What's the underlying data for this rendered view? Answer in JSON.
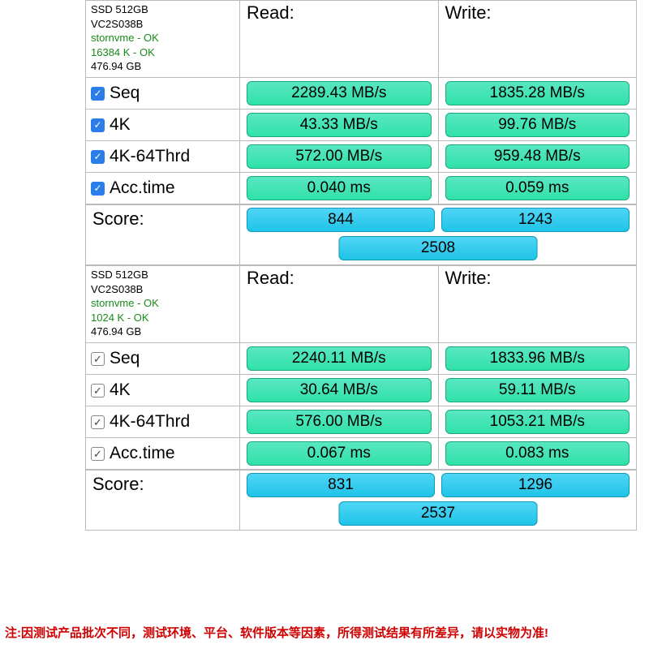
{
  "colors": {
    "green_bar_top": "#5ae6c2",
    "green_bar_bottom": "#2fe2a9",
    "green_bar_border": "#1ba87c",
    "cyan_bar_top": "#4fd5f5",
    "cyan_bar_bottom": "#1fc4e8",
    "cyan_bar_border": "#1499ba",
    "checkbox_blue": "#2b7de9",
    "ok_text": "#1a8a1a",
    "footer_red": "#d00000",
    "border": "#bbbbbb",
    "background": "#ffffff"
  },
  "columns": {
    "read": "Read:",
    "write": "Write:"
  },
  "checkbox_style": {
    "panel1": "blue",
    "panel2": "outline"
  },
  "panel1": {
    "device": {
      "name": "SSD 512GB",
      "model": "VC2S038B",
      "driver": "stornvme - OK",
      "block": "16384 K - OK",
      "capacity": "476.94 GB"
    },
    "rows": [
      {
        "key": "seq",
        "label": "Seq",
        "read": "2289.43 MB/s",
        "write": "1835.28 MB/s"
      },
      {
        "key": "4k",
        "label": "4K",
        "read": "43.33 MB/s",
        "write": "99.76 MB/s"
      },
      {
        "key": "4k64",
        "label": "4K-64Thrd",
        "read": "572.00 MB/s",
        "write": "959.48 MB/s"
      },
      {
        "key": "acc",
        "label": "Acc.time",
        "read": "0.040 ms",
        "write": "0.059 ms"
      }
    ],
    "score": {
      "label": "Score:",
      "read": "844",
      "write": "1243",
      "total": "2508"
    }
  },
  "panel2": {
    "device": {
      "name": "SSD 512GB",
      "model": "VC2S038B",
      "driver": "stornvme - OK",
      "block": "1024 K - OK",
      "capacity": "476.94 GB"
    },
    "rows": [
      {
        "key": "seq",
        "label": "Seq",
        "read": "2240.11 MB/s",
        "write": "1833.96 MB/s"
      },
      {
        "key": "4k",
        "label": "4K",
        "read": "30.64 MB/s",
        "write": "59.11 MB/s"
      },
      {
        "key": "4k64",
        "label": "4K-64Thrd",
        "read": "576.00 MB/s",
        "write": "1053.21 MB/s"
      },
      {
        "key": "acc",
        "label": "Acc.time",
        "read": "0.067 ms",
        "write": "0.083 ms"
      }
    ],
    "score": {
      "label": "Score:",
      "read": "831",
      "write": "1296",
      "total": "2537"
    }
  },
  "footer_note": "注:因测试产品批次不同，测试环境、平台、软件版本等因素，所得测试结果有所差异，请以实物为准!"
}
